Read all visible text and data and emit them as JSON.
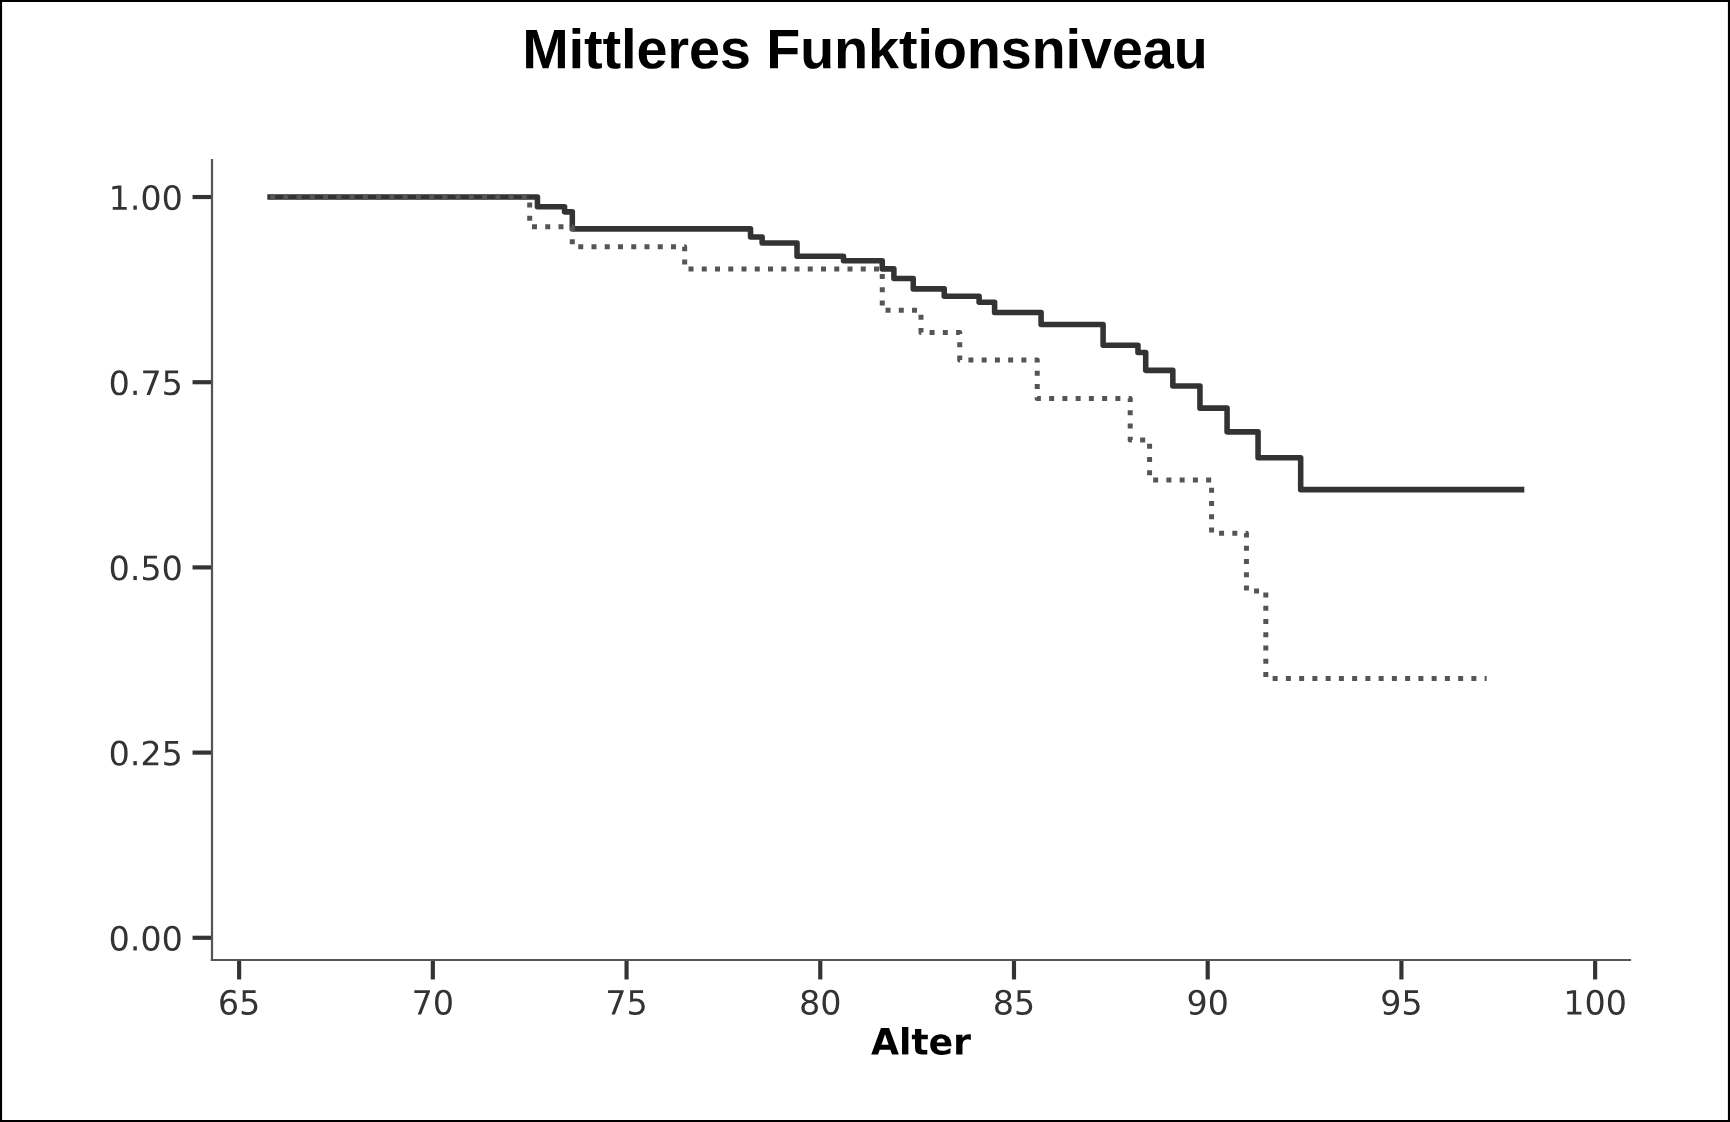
{
  "chart_data": {
    "type": "step",
    "title": "Mittleres Funktionsniveau",
    "xlabel": "Alter",
    "xlim": [
      64.3,
      100.9
    ],
    "xticks": [
      65,
      70,
      75,
      80,
      85,
      90,
      95,
      100
    ],
    "ylim": [
      -0.03,
      1.05
    ],
    "yticks": [
      {
        "value": 0,
        "label": "0.00"
      },
      {
        "value": 0.25,
        "label": "0.25"
      },
      {
        "value": 0.5,
        "label": "0.50"
      },
      {
        "value": 0.75,
        "label": "0.75"
      },
      {
        "value": 1,
        "label": "1.00"
      }
    ],
    "grid": false,
    "marker": "none",
    "series": [
      {
        "color": "#333333",
        "line_style": "solid",
        "x": [
          65.8,
          72.7,
          73.4,
          73.6,
          78.2,
          78.5,
          79.4,
          80.6,
          81.6,
          81.9,
          82.4,
          83.2,
          84.1,
          84.5,
          85.7,
          87.3,
          88.2,
          88.4,
          89.1,
          89.8,
          90.5,
          91.3,
          92.4,
          98.1
        ],
        "values": [
          1.0,
          0.987,
          0.98,
          0.957,
          0.946,
          0.938,
          0.92,
          0.914,
          0.903,
          0.89,
          0.876,
          0.866,
          0.858,
          0.844,
          0.828,
          0.8,
          0.79,
          0.766,
          0.745,
          0.715,
          0.683,
          0.648,
          0.605,
          0.605
        ]
      },
      {
        "color": "#555555",
        "line_style": "dotted",
        "x": [
          65.8,
          72.5,
          73.6,
          76.5,
          81.6,
          82.6,
          83.6,
          85.6,
          88.0,
          88.5,
          90.1,
          91.0,
          91.5,
          97.2
        ],
        "values": [
          1.0,
          0.96,
          0.933,
          0.903,
          0.847,
          0.817,
          0.78,
          0.728,
          0.672,
          0.618,
          0.546,
          0.468,
          0.35,
          0.35
        ]
      }
    ]
  }
}
